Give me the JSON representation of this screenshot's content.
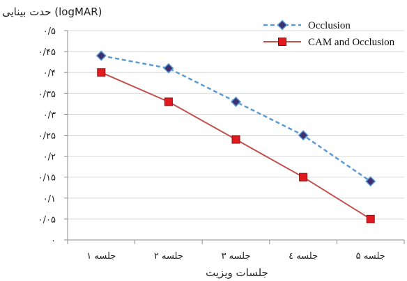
{
  "chart_data": {
    "type": "line",
    "title": "",
    "ylabel": "حدت بینایی (logMAR)",
    "xlabel": "جلسات ویزیت",
    "categories": [
      "جلسه ۱",
      "جلسه ۲",
      "جلسه ۳",
      "جلسه ٤",
      "جلسه ۵"
    ],
    "ylim": [
      0,
      0.5
    ],
    "yticks": [
      0,
      0.05,
      0.1,
      0.15,
      0.2,
      0.25,
      0.3,
      0.35,
      0.4,
      0.45,
      0.5
    ],
    "ytick_labels": [
      "۰",
      "۰/۰۵",
      "۰/۱",
      "۰/۱۵",
      "۰/۲",
      "۰/۲۵",
      "۰/۳",
      "۰/۳۵",
      "۰/۴",
      "۰/۴۵",
      "۰/۵"
    ],
    "grid": true,
    "legend_position": "top-right",
    "series": [
      {
        "name": "Occlusion",
        "values": [
          0.44,
          0.41,
          0.33,
          0.25,
          0.14
        ],
        "color": "#5B9BD5",
        "line_style": "dashed",
        "marker": "diamond",
        "marker_fill": "#3C3070"
      },
      {
        "name": "CAM and Occlusion",
        "values": [
          0.4,
          0.33,
          0.24,
          0.15,
          0.05
        ],
        "color": "#C0504D",
        "line_style": "solid",
        "marker": "square",
        "marker_fill": "#E11A1F"
      }
    ]
  }
}
